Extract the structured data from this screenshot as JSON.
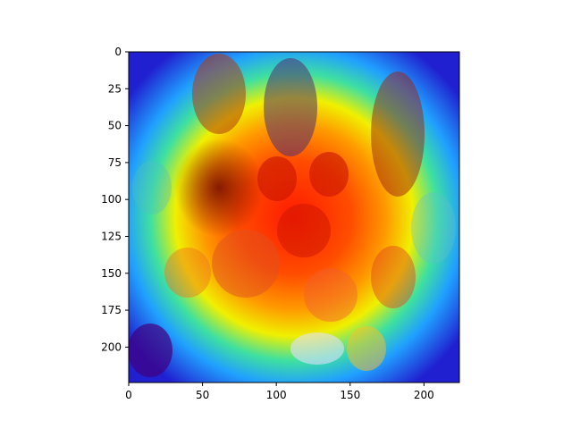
{
  "chart_data": {
    "type": "heatmap",
    "title": "",
    "xlabel": "",
    "ylabel": "",
    "xlim": [
      0,
      224
    ],
    "ylim": [
      224,
      0
    ],
    "x_ticks": [
      0,
      50,
      100,
      150,
      200
    ],
    "y_ticks": [
      0,
      25,
      50,
      75,
      100,
      125,
      150,
      175,
      200
    ],
    "x_tick_labels": [
      "0",
      "50",
      "100",
      "150",
      "200"
    ],
    "y_tick_labels": [
      "0",
      "25",
      "50",
      "75",
      "100",
      "125",
      "150",
      "175",
      "200"
    ],
    "grid": false,
    "colormap": "jet",
    "image_content": "heatmap overlay on photo of dolls, vase and fruit",
    "hotspot_center": [
      112,
      118
    ],
    "colors": {
      "axis": "#000000",
      "hot": "#ff3000",
      "cool": "#1a1aff"
    }
  }
}
